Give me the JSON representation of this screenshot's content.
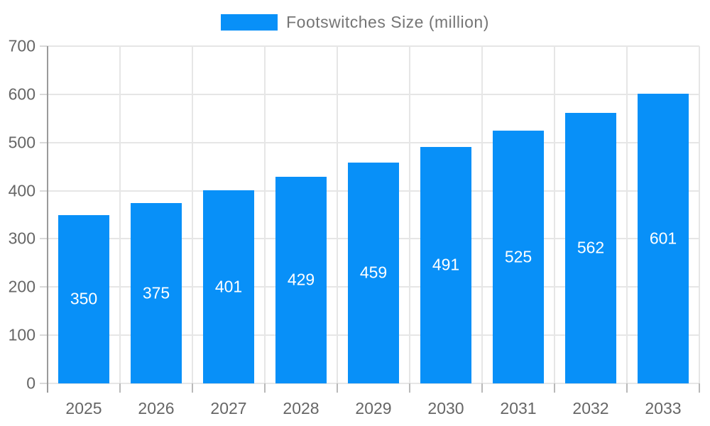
{
  "chart_data": {
    "type": "bar",
    "legend": "Footswitches Size (million)",
    "categories": [
      "2025",
      "2026",
      "2027",
      "2028",
      "2029",
      "2030",
      "2031",
      "2032",
      "2033"
    ],
    "values": [
      350,
      375,
      401,
      429,
      459,
      491,
      525,
      562,
      601
    ],
    "yticks": [
      0,
      100,
      200,
      300,
      400,
      500,
      600,
      700
    ],
    "ylim": [
      0,
      700
    ],
    "xlabel": "",
    "ylabel": "",
    "grid": "on",
    "legend_position": "top-center",
    "value_labels": "inside-center",
    "colors": {
      "bar": "#0890f8",
      "grid": "#e6e6e6",
      "y_axis_line": "#9a9a9a",
      "axis_text": "#666666",
      "legend_text": "#757575",
      "bar_label_text": "#ffffff"
    }
  }
}
